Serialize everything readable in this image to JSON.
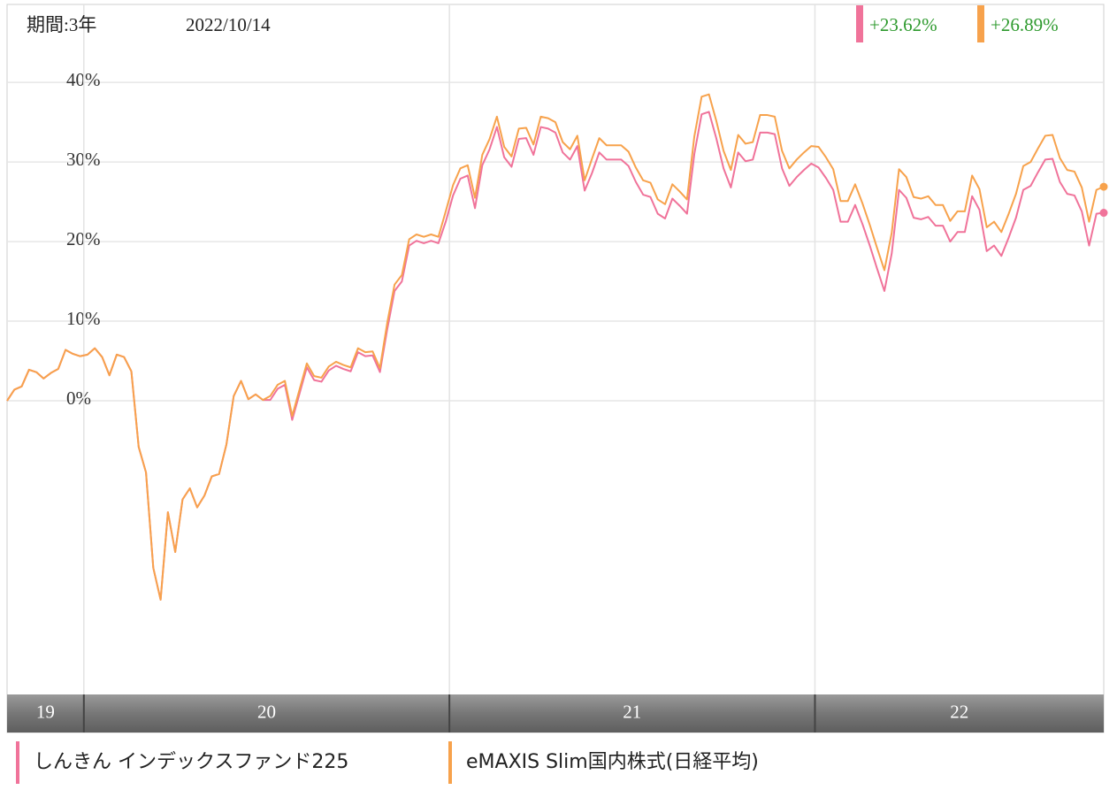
{
  "chart_data": {
    "type": "line",
    "period_label": "期間:3年",
    "date": "2022/10/14",
    "ylim": [
      -36.9,
      49.8
    ],
    "yticks": [
      {
        "value": 0,
        "label": "0%"
      },
      {
        "value": 10,
        "label": "10%"
      },
      {
        "value": 20,
        "label": "20%"
      },
      {
        "value": 30,
        "label": "30%"
      },
      {
        "value": 40,
        "label": "40%"
      }
    ],
    "xlim": [
      2019.79,
      2022.79
    ],
    "xticks": [
      {
        "value": 2019,
        "label": "19"
      },
      {
        "value": 2020,
        "label": "20"
      },
      {
        "value": 2021,
        "label": "21"
      },
      {
        "value": 2022,
        "label": "22"
      }
    ],
    "grid": true,
    "x": [
      2019.79,
      2019.81,
      2019.83,
      2019.85,
      2019.87,
      2019.89,
      2019.91,
      2019.93,
      2019.95,
      2019.97,
      2019.99,
      2020.01,
      2020.03,
      2020.05,
      2020.07,
      2020.09,
      2020.11,
      2020.13,
      2020.15,
      2020.17,
      2020.19,
      2020.21,
      2020.23,
      2020.25,
      2020.27,
      2020.29,
      2020.31,
      2020.33,
      2020.35,
      2020.37,
      2020.39,
      2020.41,
      2020.43,
      2020.45,
      2020.47,
      2020.49,
      2020.51,
      2020.53,
      2020.55,
      2020.57,
      2020.59,
      2020.61,
      2020.63,
      2020.65,
      2020.67,
      2020.69,
      2020.71,
      2020.73,
      2020.75,
      2020.77,
      2020.79,
      2020.81,
      2020.83,
      2020.85,
      2020.87,
      2020.89,
      2020.91,
      2020.93,
      2020.95,
      2020.97,
      2020.99,
      2021.01,
      2021.03,
      2021.05,
      2021.07,
      2021.09,
      2021.11,
      2021.13,
      2021.15,
      2021.17,
      2021.19,
      2021.21,
      2021.23,
      2021.25,
      2021.27,
      2021.29,
      2021.31,
      2021.33,
      2021.35,
      2021.37,
      2021.39,
      2021.41,
      2021.43,
      2021.45,
      2021.47,
      2021.49,
      2021.51,
      2021.53,
      2021.55,
      2021.57,
      2021.59,
      2021.61,
      2021.63,
      2021.65,
      2021.67,
      2021.69,
      2021.71,
      2021.73,
      2021.75,
      2021.77,
      2021.79,
      2021.81,
      2021.83,
      2021.85,
      2021.87,
      2021.89,
      2021.91,
      2021.93,
      2021.95,
      2021.97,
      2021.99,
      2022.01,
      2022.03,
      2022.05,
      2022.07,
      2022.09,
      2022.11,
      2022.13,
      2022.15,
      2022.17,
      2022.19,
      2022.21,
      2022.23,
      2022.25,
      2022.27,
      2022.29,
      2022.31,
      2022.33,
      2022.35,
      2022.37,
      2022.39,
      2022.41,
      2022.43,
      2022.45,
      2022.47,
      2022.49,
      2022.51,
      2022.53,
      2022.55,
      2022.57,
      2022.59,
      2022.61,
      2022.63,
      2022.65,
      2022.67,
      2022.69,
      2022.71,
      2022.73,
      2022.75,
      2022.77,
      2022.79
    ],
    "series": [
      {
        "name": "しんきん インデックスファンド225",
        "color": "#f0739a",
        "change": {
          "value": 23.62,
          "label": "+23.62%"
        },
        "values": [
          0,
          1.4,
          1.8,
          3.9,
          3.6,
          2.8,
          3.5,
          4.0,
          6.4,
          5.9,
          5.6,
          5.8,
          6.6,
          5.5,
          3.2,
          5.8,
          5.5,
          3.7,
          -5.8,
          -9,
          -21,
          -25,
          -14,
          -19,
          -12.4,
          -11,
          -13.4,
          -11.9,
          -9.5,
          -9.2,
          -5.5,
          0.6,
          2.5,
          0.2,
          0.8,
          0.1,
          0.1,
          1.5,
          2,
          -2.4,
          0.9,
          4.2,
          2.6,
          2.4,
          3.8,
          4.4,
          4.0,
          3.7,
          6.1,
          5.6,
          5.7,
          3.6,
          9,
          13.8,
          15,
          19.5,
          20.1,
          19.8,
          20.1,
          19.8,
          22.5,
          25.8,
          27.9,
          28.3,
          24.2,
          29.6,
          31.6,
          34.4,
          30.6,
          29.4,
          32.9,
          33,
          30.9,
          34.4,
          34.2,
          33.7,
          31.2,
          30.3,
          32,
          26.4,
          28.6,
          31.2,
          30.3,
          30.3,
          30.3,
          29.5,
          27.5,
          25.9,
          25.6,
          23.5,
          22.9,
          25.4,
          24.5,
          23.5,
          31,
          36,
          36.3,
          33,
          29.2,
          26.8,
          31.2,
          30.1,
          30.3,
          33.7,
          33.7,
          33.5,
          29.2,
          27,
          28.1,
          29,
          29.8,
          29.3,
          28,
          26.5,
          22.5,
          22.5,
          24.6,
          22.2,
          19.5,
          16.6,
          13.8,
          18.5,
          26.5,
          25.5,
          23,
          22.8,
          23.1,
          22,
          22,
          20,
          21.2,
          21.2,
          25.7,
          24,
          18.8,
          19.5,
          18.2,
          20.5,
          23,
          26.5,
          27,
          28.7,
          30.3,
          30.4,
          27.5,
          26,
          25.8,
          23.8,
          19.5,
          23.5,
          23.62
        ]
      },
      {
        "name": "eMAXIS Slim国内株式(日経平均)",
        "color": "#f7a24c",
        "change": {
          "value": 26.89,
          "label": "+26.89%"
        },
        "values": [
          0,
          1.4,
          1.8,
          3.9,
          3.6,
          2.8,
          3.5,
          4.0,
          6.4,
          5.9,
          5.6,
          5.8,
          6.6,
          5.5,
          3.2,
          5.8,
          5.5,
          3.7,
          -5.8,
          -9,
          -21,
          -25,
          -14,
          -19,
          -12.4,
          -11,
          -13.4,
          -11.9,
          -9.5,
          -9.2,
          -5.5,
          0.6,
          2.5,
          0.2,
          0.8,
          0.1,
          0.6,
          2,
          2.5,
          -1.9,
          1.4,
          4.7,
          3.1,
          2.9,
          4.3,
          4.9,
          4.5,
          4.2,
          6.6,
          6.1,
          6.2,
          4.1,
          9.8,
          14.6,
          15.8,
          20.3,
          20.9,
          20.6,
          20.9,
          20.6,
          23.8,
          27.1,
          29.2,
          29.6,
          25.5,
          30.9,
          32.9,
          35.7,
          31.9,
          30.7,
          34.2,
          34.3,
          32.2,
          35.7,
          35.5,
          35,
          32.5,
          31.6,
          33.3,
          27.7,
          30.4,
          33,
          32.1,
          32.1,
          32.1,
          31.3,
          29.3,
          27.7,
          27.4,
          25.3,
          24.7,
          27.2,
          26.3,
          25.3,
          33.2,
          38.2,
          38.5,
          35.2,
          31.4,
          29,
          33.4,
          32.3,
          32.5,
          35.9,
          35.9,
          35.7,
          31.4,
          29.2,
          30.3,
          31.2,
          32,
          31.9,
          30.6,
          29.1,
          25.1,
          25.1,
          27.2,
          24.8,
          22.1,
          19.2,
          16.4,
          21.1,
          29.1,
          28.1,
          25.6,
          25.4,
          25.7,
          24.6,
          24.6,
          22.6,
          23.8,
          23.8,
          28.3,
          26.6,
          21.8,
          22.5,
          21.2,
          23.5,
          26,
          29.5,
          30,
          31.7,
          33.3,
          33.4,
          30.5,
          29,
          28.8,
          26.8,
          22.5,
          26.5,
          26.89
        ]
      }
    ]
  }
}
